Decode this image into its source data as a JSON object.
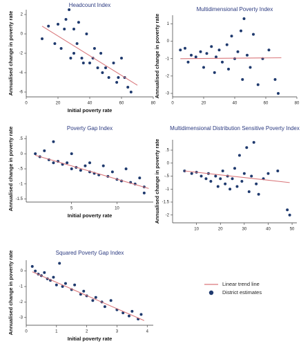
{
  "chart_data": [
    {
      "type": "scatter",
      "title": "Headcount Index",
      "xlabel": "Initial poverty rate",
      "ylabel": "Annualised change in poverty rate",
      "x": [
        10,
        14,
        18,
        20,
        22,
        24,
        25,
        27,
        28,
        30,
        30,
        32,
        33,
        35,
        36,
        38,
        40,
        42,
        43,
        45,
        47,
        48,
        50,
        52,
        55,
        57,
        58,
        60,
        62,
        64,
        66
      ],
      "values": [
        -0.5,
        0.8,
        -1,
        1,
        -1.5,
        0.5,
        1.5,
        2.5,
        -2.5,
        0.5,
        -2,
        -1,
        1.2,
        -2.5,
        -3,
        0,
        -3,
        -2.5,
        -1.5,
        -3.5,
        -2,
        -4,
        -3.5,
        -4.5,
        -3,
        -5,
        -4.5,
        -2.5,
        -4.5,
        -5.5,
        -6
      ],
      "trend": {
        "x": [
          10,
          70
        ],
        "values": [
          0.8,
          -5.3
        ]
      },
      "xlim": [
        0,
        80
      ],
      "xticks": [
        0,
        20,
        40,
        60,
        80
      ],
      "ylim": [
        -6.5,
        2.5
      ],
      "yticks": [
        -6,
        -4,
        -2,
        0,
        2
      ]
    },
    {
      "type": "scatter",
      "title": "Multidimensional Poverty Index",
      "ylabel": "Annualised change in poverty rate",
      "x": [
        5,
        8,
        10,
        12,
        15,
        18,
        20,
        22,
        25,
        27,
        28,
        30,
        32,
        35,
        36,
        38,
        40,
        42,
        44,
        45,
        46,
        48,
        50,
        52,
        55,
        58,
        62,
        66,
        68
      ],
      "values": [
        -0.5,
        -0.4,
        -1.2,
        -0.8,
        -0.9,
        -0.6,
        -1.5,
        -0.7,
        -0.3,
        -1.8,
        -0.9,
        -0.5,
        -1.2,
        -0.2,
        -1.6,
        0.3,
        -1,
        -0.6,
        0.6,
        -2.2,
        1.3,
        -0.8,
        -1.5,
        0.4,
        -2.5,
        -1,
        -0.5,
        -2.2,
        -3
      ],
      "trend": {
        "x": [
          5,
          70
        ],
        "values": [
          -1,
          -0.95
        ]
      },
      "xlim": [
        0,
        80
      ],
      "xticks": [
        0,
        20,
        40,
        60,
        80
      ],
      "ylim": [
        -3.2,
        1.5
      ],
      "yticks": [
        -3,
        -2,
        -1,
        0,
        1
      ]
    },
    {
      "type": "scatter",
      "title": "Poverty Gap Index",
      "xlabel": "Initial poverty rate",
      "ylabel": "Annualised change in poverty rate",
      "x": [
        1,
        1.5,
        2,
        2.5,
        3,
        3,
        3.5,
        4,
        4.5,
        5,
        5,
        5.5,
        6,
        6.5,
        7,
        7,
        7.5,
        8,
        8.5,
        9,
        9.5,
        10,
        10.5,
        11,
        11.5,
        12,
        12.5,
        13,
        13
      ],
      "values": [
        0,
        -0.1,
        0.1,
        -0.2,
        0.4,
        -0.3,
        -0.25,
        -0.35,
        -0.3,
        -0.5,
        0,
        -0.45,
        -0.55,
        -0.4,
        -0.6,
        -0.3,
        -0.65,
        -0.7,
        -0.4,
        -0.75,
        -0.6,
        -0.85,
        -0.9,
        -0.5,
        -0.95,
        -1,
        -0.8,
        -1.1,
        -1.3
      ],
      "trend": {
        "x": [
          1,
          13.5
        ],
        "values": [
          -0.05,
          -1.15
        ]
      },
      "xlim": [
        0,
        14
      ],
      "xticks": [
        5,
        10
      ],
      "ylim": [
        -1.6,
        0.6
      ],
      "yticks": [
        {
          "value": -1.5,
          "label": "-1.5"
        },
        -1,
        {
          "value": -0.5,
          "label": "-.5"
        },
        0,
        {
          "value": 0.5,
          "label": ".5"
        }
      ]
    },
    {
      "type": "scatter",
      "title": "Multidimensional Distribution Sensitive Poverty Index",
      "ylabel": "Annualised change in poverty rate",
      "x": [
        5,
        8,
        10,
        12,
        14,
        15,
        16,
        18,
        19,
        20,
        21,
        22,
        23,
        24,
        25,
        26,
        27,
        28,
        29,
        30,
        31,
        32,
        33,
        34,
        35,
        36,
        38,
        40,
        44,
        48,
        49
      ],
      "values": [
        -0.3,
        -0.4,
        -0.35,
        -0.5,
        -0.6,
        -0.4,
        -0.7,
        -0.5,
        -0.9,
        -0.6,
        -0.3,
        -0.8,
        -0.5,
        -1,
        -0.6,
        -0.2,
        -0.9,
        0.3,
        -0.7,
        -0.4,
        0.6,
        -1.1,
        -0.5,
        0.8,
        -0.8,
        -1.2,
        -0.6,
        -0.4,
        -0.3,
        -1.8,
        -2
      ],
      "trend": {
        "x": [
          5,
          49
        ],
        "values": [
          -0.3,
          -0.75
        ]
      },
      "xlim": [
        0,
        52
      ],
      "xticks": [
        10,
        20,
        30,
        40,
        50
      ],
      "ylim": [
        -2.3,
        0.9
      ],
      "yticks": [
        -2,
        {
          "value": -1.5,
          "label": "-1.5"
        },
        -1,
        {
          "value": -0.5,
          "label": "-.5"
        },
        0,
        {
          "value": 0.5,
          "label": ".5"
        }
      ]
    },
    {
      "type": "scatter",
      "title": "Squared Poverty Gap Index",
      "xlabel": "Initial poverty rate",
      "ylabel": "Annualised change in poverty rate",
      "x": [
        0.2,
        0.3,
        0.4,
        0.5,
        0.6,
        0.7,
        0.8,
        0.9,
        1,
        1.1,
        1.2,
        1.3,
        1.5,
        1.6,
        1.8,
        1.9,
        2,
        2.2,
        2.3,
        2.5,
        2.6,
        2.8,
        3,
        3.2,
        3.4,
        3.5,
        3.7,
        3.8
      ],
      "values": [
        0.3,
        0,
        -0.2,
        -0.3,
        -0.1,
        -0.5,
        -0.6,
        -0.4,
        -0.9,
        0.5,
        -1,
        -0.8,
        -1.2,
        -0.9,
        -1.5,
        -1.3,
        -1.6,
        -1.9,
        -1.7,
        -2,
        -2.3,
        -1.9,
        -2.5,
        -2.7,
        -2.9,
        -2.6,
        -3.1,
        -2.8
      ],
      "trend": {
        "x": [
          0.2,
          3.9
        ],
        "values": [
          -0.05,
          -3.2
        ]
      },
      "xlim": [
        0,
        4.2
      ],
      "xticks": [
        0,
        1,
        2,
        3,
        4
      ],
      "ylim": [
        -3.5,
        0.7
      ],
      "yticks": [
        -3,
        -2,
        -1,
        0
      ]
    }
  ],
  "legend": {
    "line": "Linear trend line",
    "points": "District estimates",
    "line_color": "#d9767a",
    "point_color": "#1f3a6e"
  }
}
